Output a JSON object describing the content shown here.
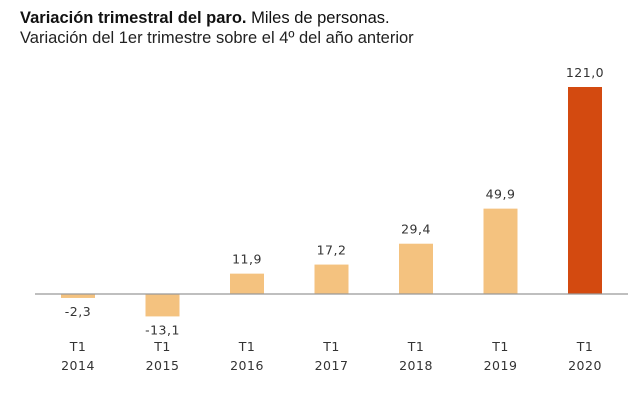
{
  "chart_data": {
    "type": "bar",
    "title": "Variación trimestral del paro.",
    "title_suffix": "Miles de personas.",
    "subtitle": "Variación del 1er trimestre sobre el 4º del año anterior",
    "xlabel": "",
    "ylabel": "",
    "categories": [
      {
        "quarter": "T1",
        "year": "2014"
      },
      {
        "quarter": "T1",
        "year": "2015"
      },
      {
        "quarter": "T1",
        "year": "2016"
      },
      {
        "quarter": "T1",
        "year": "2017"
      },
      {
        "quarter": "T1",
        "year": "2018"
      },
      {
        "quarter": "T1",
        "year": "2019"
      },
      {
        "quarter": "T1",
        "year": "2020"
      }
    ],
    "values": [
      -2.3,
      -13.1,
      11.9,
      17.2,
      29.4,
      49.9,
      121.0
    ],
    "labels": [
      "-2,3",
      "-13,1",
      "11,9",
      "17,2",
      "29,4",
      "49,9",
      "121,0"
    ],
    "highlight_index": 6,
    "ylim": [
      -13.1,
      121.0
    ],
    "grid": false,
    "legend": "none",
    "colors": {
      "bar": "#f4c27f",
      "highlight": "#d34a10",
      "axis": "#999999",
      "text": "#333333"
    }
  }
}
